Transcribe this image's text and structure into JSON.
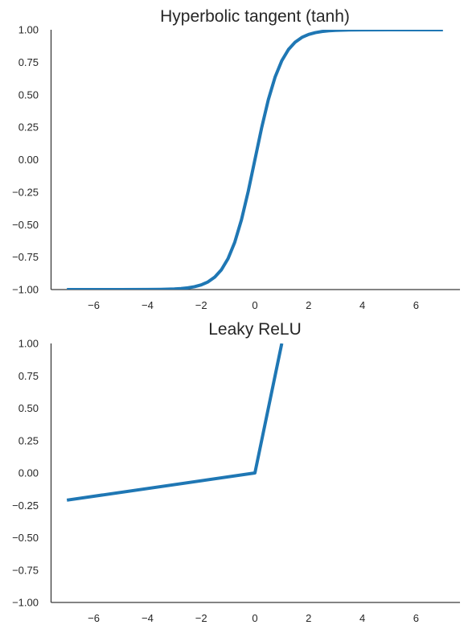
{
  "colors": {
    "series": "#1f77b4",
    "axis": "#3a3a3a",
    "text": "#262626"
  },
  "chart_data": [
    {
      "type": "line",
      "title": "Hyperbolic tangent (tanh)",
      "xlabel": "",
      "ylabel": "",
      "xlim": [
        -7.8,
        7.8
      ],
      "ylim": [
        -1.0,
        1.0
      ],
      "xticks": [
        -6,
        -4,
        -2,
        0,
        2,
        4,
        6
      ],
      "xtick_labels": [
        "−6",
        "−4",
        "−2",
        "0",
        "2",
        "4",
        "6"
      ],
      "yticks": [
        1.0,
        0.75,
        0.5,
        0.25,
        0.0,
        -0.25,
        -0.5,
        -0.75,
        -1.0
      ],
      "ytick_labels": [
        "1.00",
        "0.75",
        "0.50",
        "0.25",
        "0.00",
        "−0.25",
        "−0.50",
        "−0.75",
        "−1.00"
      ],
      "grid": false,
      "series": [
        {
          "x": [
            -7,
            -6,
            -5,
            -4,
            -3.5,
            -3,
            -2.75,
            -2.5,
            -2.25,
            -2,
            -1.75,
            -1.5,
            -1.25,
            -1,
            -0.75,
            -0.5,
            -0.25,
            0,
            0.25,
            0.5,
            0.75,
            1,
            1.25,
            1.5,
            1.75,
            2,
            2.25,
            2.5,
            2.75,
            3,
            3.5,
            4,
            5,
            6,
            7
          ],
          "y": [
            -1.0,
            -1.0,
            -0.9999,
            -0.9993,
            -0.9982,
            -0.9951,
            -0.9919,
            -0.9866,
            -0.978,
            -0.964,
            -0.9414,
            -0.9051,
            -0.8483,
            -0.7616,
            -0.6351,
            -0.4621,
            -0.2449,
            0.0,
            0.2449,
            0.4621,
            0.6351,
            0.7616,
            0.8483,
            0.9051,
            0.9414,
            0.964,
            0.978,
            0.9866,
            0.9919,
            0.9951,
            0.9982,
            0.9993,
            0.9999,
            1.0,
            1.0
          ]
        }
      ]
    },
    {
      "type": "line",
      "title": "Leaky ReLU",
      "xlabel": "",
      "ylabel": "",
      "xlim": [
        -7.8,
        7.8
      ],
      "ylim": [
        -1.0,
        1.0
      ],
      "xticks": [
        -6,
        -4,
        -2,
        0,
        2,
        4,
        6
      ],
      "xtick_labels": [
        "−6",
        "−4",
        "−2",
        "0",
        "2",
        "4",
        "6"
      ],
      "yticks": [
        1.0,
        0.75,
        0.5,
        0.25,
        0.0,
        -0.25,
        -0.5,
        -0.75,
        -1.0
      ],
      "ytick_labels": [
        "1.00",
        "0.75",
        "0.50",
        "0.25",
        "0.00",
        "−0.25",
        "−0.50",
        "−0.75",
        "−1.00"
      ],
      "grid": false,
      "series": [
        {
          "x": [
            -7,
            0,
            1
          ],
          "y": [
            -0.21,
            0.0,
            1.0
          ]
        }
      ]
    }
  ]
}
